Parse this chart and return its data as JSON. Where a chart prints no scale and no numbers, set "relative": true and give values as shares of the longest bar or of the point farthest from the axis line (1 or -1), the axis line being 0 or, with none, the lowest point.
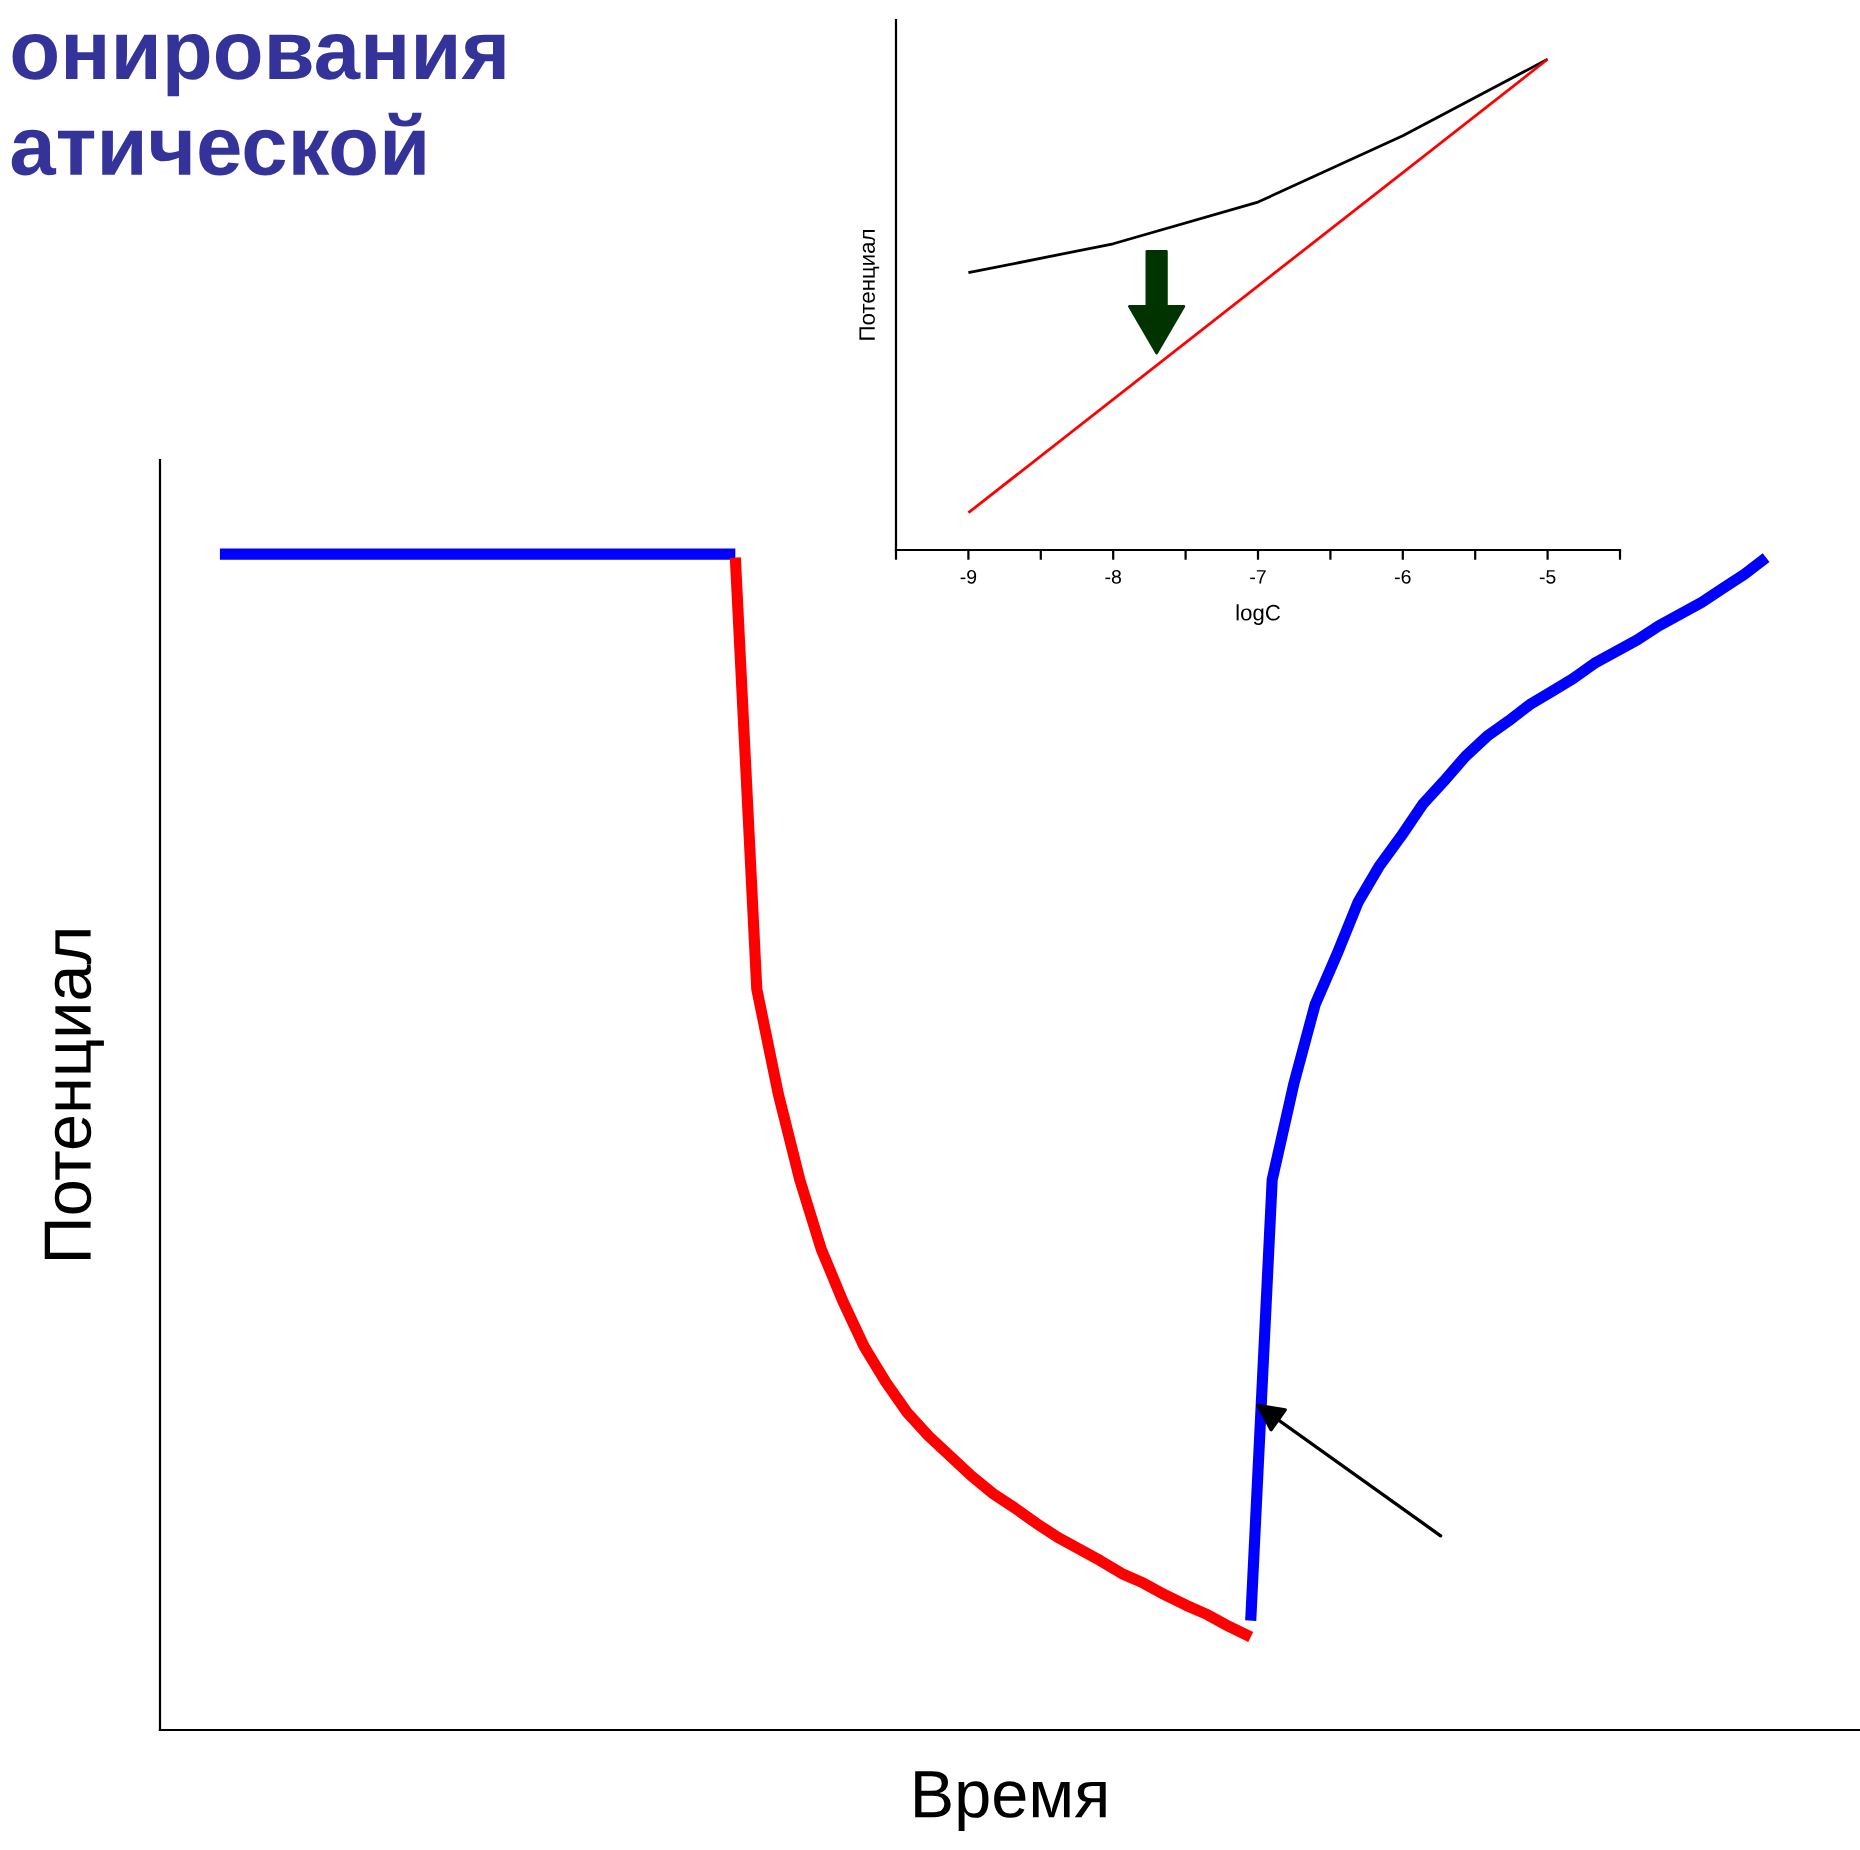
{
  "chart_data": [
    {
      "type": "line",
      "title": "онирования\nатической",
      "xlabel": "Время",
      "ylabel": "Потенциал",
      "relative": true,
      "categories": [
        null,
        null,
        null,
        null,
        null,
        null,
        null,
        null,
        null,
        null,
        null,
        null,
        null,
        null,
        null,
        null,
        null,
        null,
        null,
        null,
        null,
        null,
        null,
        null,
        null,
        null,
        null,
        null,
        null,
        null,
        null,
        null,
        null,
        null,
        null,
        null,
        null,
        null,
        null,
        null,
        null,
        null,
        null,
        null,
        null,
        null,
        null,
        null,
        null,
        null,
        null,
        null,
        null,
        null,
        null,
        null,
        null,
        null,
        null,
        null,
        null,
        null,
        null,
        null,
        null,
        null,
        null,
        null,
        null,
        null,
        null,
        null,
        null
      ],
      "series": [
        {
          "color": "#0000ff",
          "values": [
            1.0,
            1.0,
            1.0,
            1.0,
            1.0,
            1.0,
            1.0,
            1.0,
            1.0,
            1.0,
            1.0,
            1.0,
            1.0,
            1.0,
            1.0,
            1.0,
            1.0,
            1.0,
            1.0,
            1.0,
            1.0,
            1.0,
            1.0,
            1.0,
            1.0,
            null,
            null,
            null,
            null,
            null,
            null,
            null,
            null,
            null,
            null,
            null,
            null,
            null,
            null,
            null,
            null,
            null,
            null,
            null,
            null,
            null,
            null,
            null,
            null,
            null,
            null,
            null,
            null,
            null,
            null,
            null,
            null,
            null,
            null,
            null,
            null,
            null,
            null,
            null,
            null,
            null,
            null,
            null,
            null,
            null,
            null,
            null,
            null
          ]
        },
        {
          "color": "#ff0000",
          "values": [
            null,
            null,
            null,
            null,
            null,
            null,
            null,
            null,
            null,
            null,
            null,
            null,
            null,
            null,
            null,
            null,
            null,
            null,
            null,
            null,
            null,
            null,
            null,
            null,
            0.997,
            0.63,
            0.541,
            0.468,
            0.409,
            0.365,
            0.326,
            0.296,
            0.27,
            0.25,
            0.233,
            0.216,
            0.201,
            0.189,
            0.176,
            0.164,
            0.154,
            0.144,
            0.133,
            0.125,
            0.115,
            0.106,
            0.098,
            0.088,
            0.079,
            null,
            null,
            null,
            null,
            null,
            null,
            null,
            null,
            null,
            null,
            null,
            null,
            null,
            null,
            null,
            null,
            null,
            null,
            null,
            null,
            null,
            null,
            null,
            null
          ]
        },
        {
          "color": "#0000ff",
          "values": [
            null,
            null,
            null,
            null,
            null,
            null,
            null,
            null,
            null,
            null,
            null,
            null,
            null,
            null,
            null,
            null,
            null,
            null,
            null,
            null,
            null,
            null,
            null,
            null,
            null,
            null,
            null,
            null,
            null,
            null,
            null,
            null,
            null,
            null,
            null,
            null,
            null,
            null,
            null,
            null,
            null,
            null,
            null,
            null,
            null,
            null,
            null,
            null,
            0.093,
            0.468,
            0.549,
            0.617,
            0.659,
            0.704,
            0.735,
            0.76,
            0.787,
            0.807,
            0.828,
            0.845,
            0.858,
            0.872,
            0.883,
            0.894,
            0.907,
            0.917,
            0.927,
            0.939,
            0.949,
            0.959,
            0.971,
            0.983,
            0.997
          ]
        }
      ],
      "tick_labels": false,
      "grid": false,
      "legend": false
    },
    {
      "type": "line",
      "xlabel": "logC",
      "ylabel": "Потенциал",
      "relative": true,
      "xlim": [
        -9.5,
        -4.5
      ],
      "xticks": [
        {
          "value": -9.5,
          "label": null
        },
        -9,
        {
          "value": -8.5,
          "label": null
        },
        -8,
        {
          "value": -7.5,
          "label": null
        },
        -7,
        {
          "value": -6.5,
          "label": null
        },
        -6,
        {
          "value": -5.5,
          "label": null
        },
        -5,
        {
          "value": -4.5,
          "label": null
        }
      ],
      "x": [
        -9,
        -8,
        -7,
        -6,
        -5
      ],
      "series": [
        {
          "color": "#000000",
          "values": [
            0.565,
            0.624,
            0.709,
            0.844,
            1.0
          ]
        },
        {
          "color": "#ff0000",
          "values": [
            0.076,
            null,
            null,
            null,
            1.0
          ]
        }
      ],
      "tick_labels": "x",
      "grid": false,
      "legend": false
    }
  ]
}
